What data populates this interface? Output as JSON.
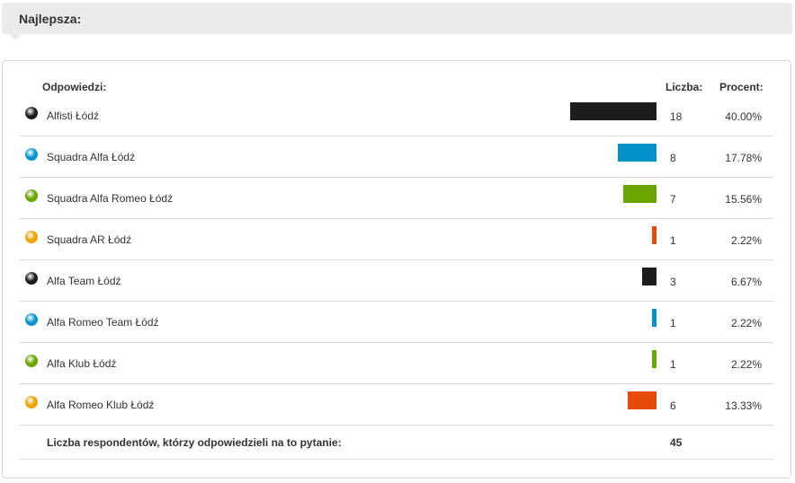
{
  "header": {
    "title": "Najlepsza:"
  },
  "columns": {
    "answers": "Odpowiedzi:",
    "count": "Liczba:",
    "percent": "Procent:"
  },
  "rows": [
    {
      "label": "Alfisti Łódź",
      "count": "18",
      "percent": "40.00%",
      "value": 40.0,
      "dot": "#1a1a1a",
      "bar": "#1d1d1d"
    },
    {
      "label": "Squadra Alfa Łódź",
      "count": "8",
      "percent": "17.78%",
      "value": 17.78,
      "dot": "#0a95cc",
      "bar": "#0092c8"
    },
    {
      "label": "Squadra Alfa Romeo Łódź",
      "count": "7",
      "percent": "15.56%",
      "value": 15.56,
      "dot": "#6aa500",
      "bar": "#6aa500"
    },
    {
      "label": "Squadra AR Łódź",
      "count": "1",
      "percent": "2.22%",
      "value": 2.22,
      "dot": "#e8a400",
      "bar": "#e84a0c"
    },
    {
      "label": "Alfa Team Łódź",
      "count": "3",
      "percent": "6.67%",
      "value": 6.67,
      "dot": "#1a1a1a",
      "bar": "#1d1d1d"
    },
    {
      "label": "Alfa Romeo Team Łódź",
      "count": "1",
      "percent": "2.22%",
      "value": 2.22,
      "dot": "#0a95cc",
      "bar": "#0092c8"
    },
    {
      "label": "Alfa Klub Łódź",
      "count": "1",
      "percent": "2.22%",
      "value": 2.22,
      "dot": "#6aa500",
      "bar": "#6aa500"
    },
    {
      "label": "Alfa Romeo Klub Łódź",
      "count": "6",
      "percent": "13.33%",
      "value": 13.33,
      "dot": "#e8a400",
      "bar": "#e84a0c"
    }
  ],
  "footer": {
    "label": "Liczba respondentów, którzy odpowiedzieli na to pytanie:",
    "total": "45"
  }
}
